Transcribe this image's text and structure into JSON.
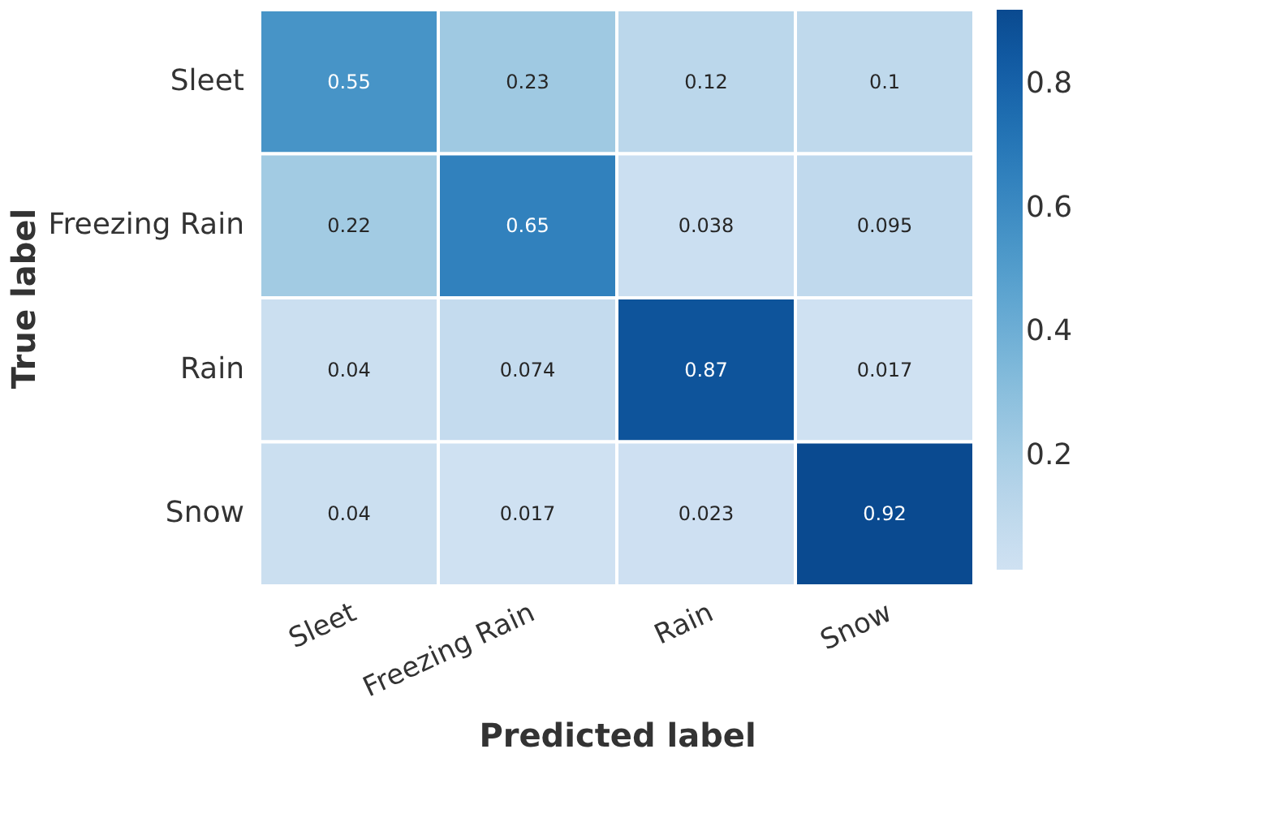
{
  "chart_data": {
    "type": "heatmap",
    "xlabel": "Predicted label",
    "ylabel": "True label",
    "categories": [
      "Sleet",
      "Freezing Rain",
      "Rain",
      "Snow"
    ],
    "y_categories": [
      "Sleet",
      "Freezing Rain",
      "Rain",
      "Snow"
    ],
    "cells": [
      [
        0.55,
        0.23,
        0.12,
        0.1
      ],
      [
        0.22,
        0.65,
        0.038,
        0.095
      ],
      [
        0.04,
        0.074,
        0.87,
        0.017
      ],
      [
        0.04,
        0.017,
        0.023,
        0.92
      ]
    ],
    "data_labels": true,
    "clim": [
      0.017,
      0.92
    ],
    "cticks": [
      0.2,
      0.4,
      0.6,
      0.8
    ]
  }
}
